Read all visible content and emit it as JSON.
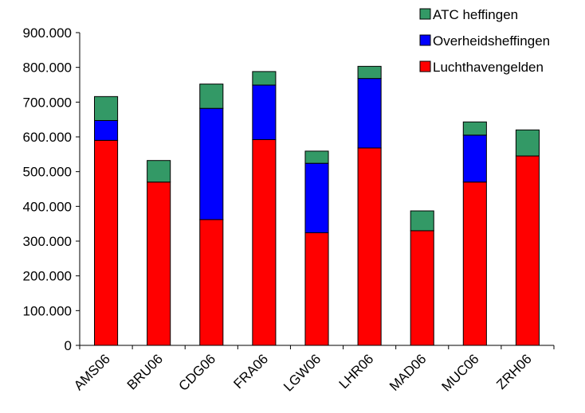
{
  "chart_data": {
    "type": "bar",
    "stacked": true,
    "categories": [
      "AMS06",
      "BRU06",
      "CDG06",
      "FRA06",
      "LGW06",
      "LHR06",
      "MAD06",
      "MUC06",
      "ZRH06"
    ],
    "series": [
      {
        "name": "Luchthavengelden",
        "color": "#ff0000",
        "values": [
          590000,
          470000,
          362000,
          592000,
          324000,
          568000,
          330000,
          470000,
          545000
        ]
      },
      {
        "name": "Overheidsheffingen",
        "color": "#0000ff",
        "values": [
          57000,
          0,
          320000,
          157000,
          200000,
          200000,
          0,
          135000,
          0
        ]
      },
      {
        "name": "ATC heffingen",
        "color": "#339966",
        "values": [
          69000,
          62000,
          70000,
          39000,
          35000,
          35000,
          57000,
          38000,
          75000
        ]
      }
    ],
    "ylim": [
      0,
      900000
    ],
    "yticks": [
      "0",
      "100.000",
      "200.000",
      "300.000",
      "400.000",
      "500.000",
      "600.000",
      "700.000",
      "800.000",
      "900.000"
    ],
    "legend_position": "top-right",
    "legend_order": [
      "ATC heffingen",
      "Overheidsheffingen",
      "Luchthavengelden"
    ],
    "grid": false
  }
}
